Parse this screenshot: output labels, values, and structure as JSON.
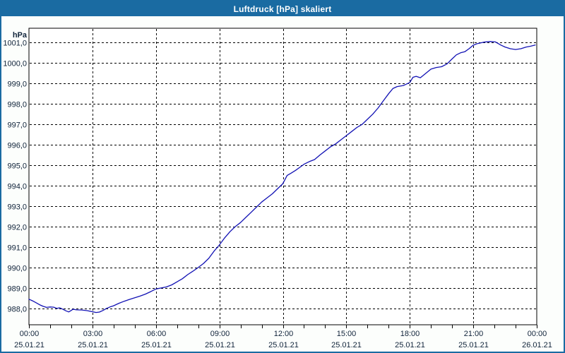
{
  "window": {
    "title": "Luftdruck [hPa] skaliert"
  },
  "colors": {
    "titlebar_bg": "#1a6ba2",
    "titlebar_text": "#ffffff",
    "window_border": "#1a6ba2",
    "panel_bg": "#fcfefc",
    "plot_bg": "#ffffff",
    "grid": "#000000",
    "axis_text": "#10233a",
    "line": "#1212b4"
  },
  "chart_data": {
    "type": "line",
    "title": "Luftdruck [hPa] skaliert",
    "ylabel": "hPa",
    "xlabel": "",
    "grid": true,
    "legend_position": "none",
    "ylim": [
      987.2,
      1001.7
    ],
    "xlim_hours": [
      0,
      24
    ],
    "minor_x_tick_every_hours": 1,
    "y_ticks": [
      {
        "value": 1001.0,
        "label": "1001,0"
      },
      {
        "value": 1000.0,
        "label": "1000,0"
      },
      {
        "value": 999.0,
        "label": "999,0"
      },
      {
        "value": 998.0,
        "label": "998,0"
      },
      {
        "value": 997.0,
        "label": "997,0"
      },
      {
        "value": 996.0,
        "label": "996,0"
      },
      {
        "value": 995.0,
        "label": "995,0"
      },
      {
        "value": 994.0,
        "label": "994,0"
      },
      {
        "value": 993.0,
        "label": "993,0"
      },
      {
        "value": 992.0,
        "label": "992,0"
      },
      {
        "value": 991.0,
        "label": "991,0"
      },
      {
        "value": 990.0,
        "label": "990,0"
      },
      {
        "value": 989.0,
        "label": "989,0"
      },
      {
        "value": 988.0,
        "label": "988,0"
      }
    ],
    "x_ticks": [
      {
        "hour": 0,
        "time": "00:00",
        "date": "25.01.21"
      },
      {
        "hour": 3,
        "time": "03:00",
        "date": "25.01.21"
      },
      {
        "hour": 6,
        "time": "06:00",
        "date": "25.01.21"
      },
      {
        "hour": 9,
        "time": "09:00",
        "date": "25.01.21"
      },
      {
        "hour": 12,
        "time": "12:00",
        "date": "25.01.21"
      },
      {
        "hour": 15,
        "time": "15:00",
        "date": "25.01.21"
      },
      {
        "hour": 18,
        "time": "18:00",
        "date": "25.01.21"
      },
      {
        "hour": 21,
        "time": "21:00",
        "date": "25.01.21"
      },
      {
        "hour": 24,
        "time": "00:00",
        "date": "26.01.21"
      }
    ],
    "series": [
      {
        "name": "Luftdruck",
        "color": "#1212b4",
        "points": [
          [
            0.0,
            988.45
          ],
          [
            0.17,
            988.37
          ],
          [
            0.33,
            988.28
          ],
          [
            0.5,
            988.18
          ],
          [
            0.67,
            988.1
          ],
          [
            0.83,
            988.05
          ],
          [
            1.0,
            988.07
          ],
          [
            1.17,
            988.06
          ],
          [
            1.33,
            988.0
          ],
          [
            1.45,
            988.03
          ],
          [
            1.58,
            987.97
          ],
          [
            1.75,
            987.88
          ],
          [
            1.88,
            987.83
          ],
          [
            2.0,
            987.9
          ],
          [
            2.08,
            987.96
          ],
          [
            2.25,
            987.93
          ],
          [
            2.5,
            987.92
          ],
          [
            2.75,
            987.89
          ],
          [
            3.0,
            987.84
          ],
          [
            3.17,
            987.8
          ],
          [
            3.33,
            987.82
          ],
          [
            3.5,
            987.9
          ],
          [
            3.67,
            988.0
          ],
          [
            3.83,
            988.07
          ],
          [
            4.0,
            988.13
          ],
          [
            4.25,
            988.25
          ],
          [
            4.5,
            988.35
          ],
          [
            4.75,
            988.44
          ],
          [
            5.0,
            988.52
          ],
          [
            5.25,
            988.6
          ],
          [
            5.5,
            988.7
          ],
          [
            5.75,
            988.82
          ],
          [
            6.0,
            988.95
          ],
          [
            6.25,
            989.0
          ],
          [
            6.5,
            989.05
          ],
          [
            6.75,
            989.15
          ],
          [
            7.0,
            989.3
          ],
          [
            7.25,
            989.45
          ],
          [
            7.5,
            989.65
          ],
          [
            7.75,
            989.82
          ],
          [
            8.0,
            990.0
          ],
          [
            8.25,
            990.2
          ],
          [
            8.5,
            990.45
          ],
          [
            8.75,
            990.8
          ],
          [
            9.0,
            991.1
          ],
          [
            9.25,
            991.45
          ],
          [
            9.5,
            991.75
          ],
          [
            9.75,
            992.0
          ],
          [
            10.0,
            992.2
          ],
          [
            10.25,
            992.45
          ],
          [
            10.5,
            992.7
          ],
          [
            10.75,
            992.95
          ],
          [
            11.0,
            993.2
          ],
          [
            11.25,
            993.4
          ],
          [
            11.5,
            993.6
          ],
          [
            11.75,
            993.85
          ],
          [
            12.0,
            994.1
          ],
          [
            12.2,
            994.5
          ],
          [
            12.4,
            994.62
          ],
          [
            12.6,
            994.75
          ],
          [
            12.8,
            994.9
          ],
          [
            13.0,
            995.05
          ],
          [
            13.25,
            995.18
          ],
          [
            13.5,
            995.28
          ],
          [
            13.75,
            995.5
          ],
          [
            14.0,
            995.7
          ],
          [
            14.25,
            995.9
          ],
          [
            14.5,
            996.05
          ],
          [
            14.75,
            996.25
          ],
          [
            15.0,
            996.45
          ],
          [
            15.25,
            996.65
          ],
          [
            15.5,
            996.85
          ],
          [
            15.75,
            997.0
          ],
          [
            16.0,
            997.25
          ],
          [
            16.25,
            997.5
          ],
          [
            16.5,
            997.8
          ],
          [
            16.75,
            998.15
          ],
          [
            17.0,
            998.5
          ],
          [
            17.2,
            998.75
          ],
          [
            17.4,
            998.85
          ],
          [
            17.7,
            998.9
          ],
          [
            18.0,
            999.05
          ],
          [
            18.15,
            999.3
          ],
          [
            18.3,
            999.35
          ],
          [
            18.5,
            999.28
          ],
          [
            18.7,
            999.45
          ],
          [
            19.0,
            999.7
          ],
          [
            19.25,
            999.78
          ],
          [
            19.5,
            999.82
          ],
          [
            19.75,
            999.95
          ],
          [
            20.0,
            1000.2
          ],
          [
            20.2,
            1000.4
          ],
          [
            20.4,
            1000.5
          ],
          [
            20.6,
            1000.55
          ],
          [
            20.8,
            1000.7
          ],
          [
            21.0,
            1000.87
          ],
          [
            21.2,
            1000.95
          ],
          [
            21.5,
            1001.02
          ],
          [
            21.8,
            1001.05
          ],
          [
            22.05,
            1001.03
          ],
          [
            22.3,
            1000.88
          ],
          [
            22.5,
            1000.78
          ],
          [
            22.75,
            1000.7
          ],
          [
            23.0,
            1000.66
          ],
          [
            23.25,
            1000.7
          ],
          [
            23.5,
            1000.78
          ],
          [
            23.7,
            1000.82
          ],
          [
            23.93,
            1000.88
          ]
        ]
      }
    ]
  }
}
